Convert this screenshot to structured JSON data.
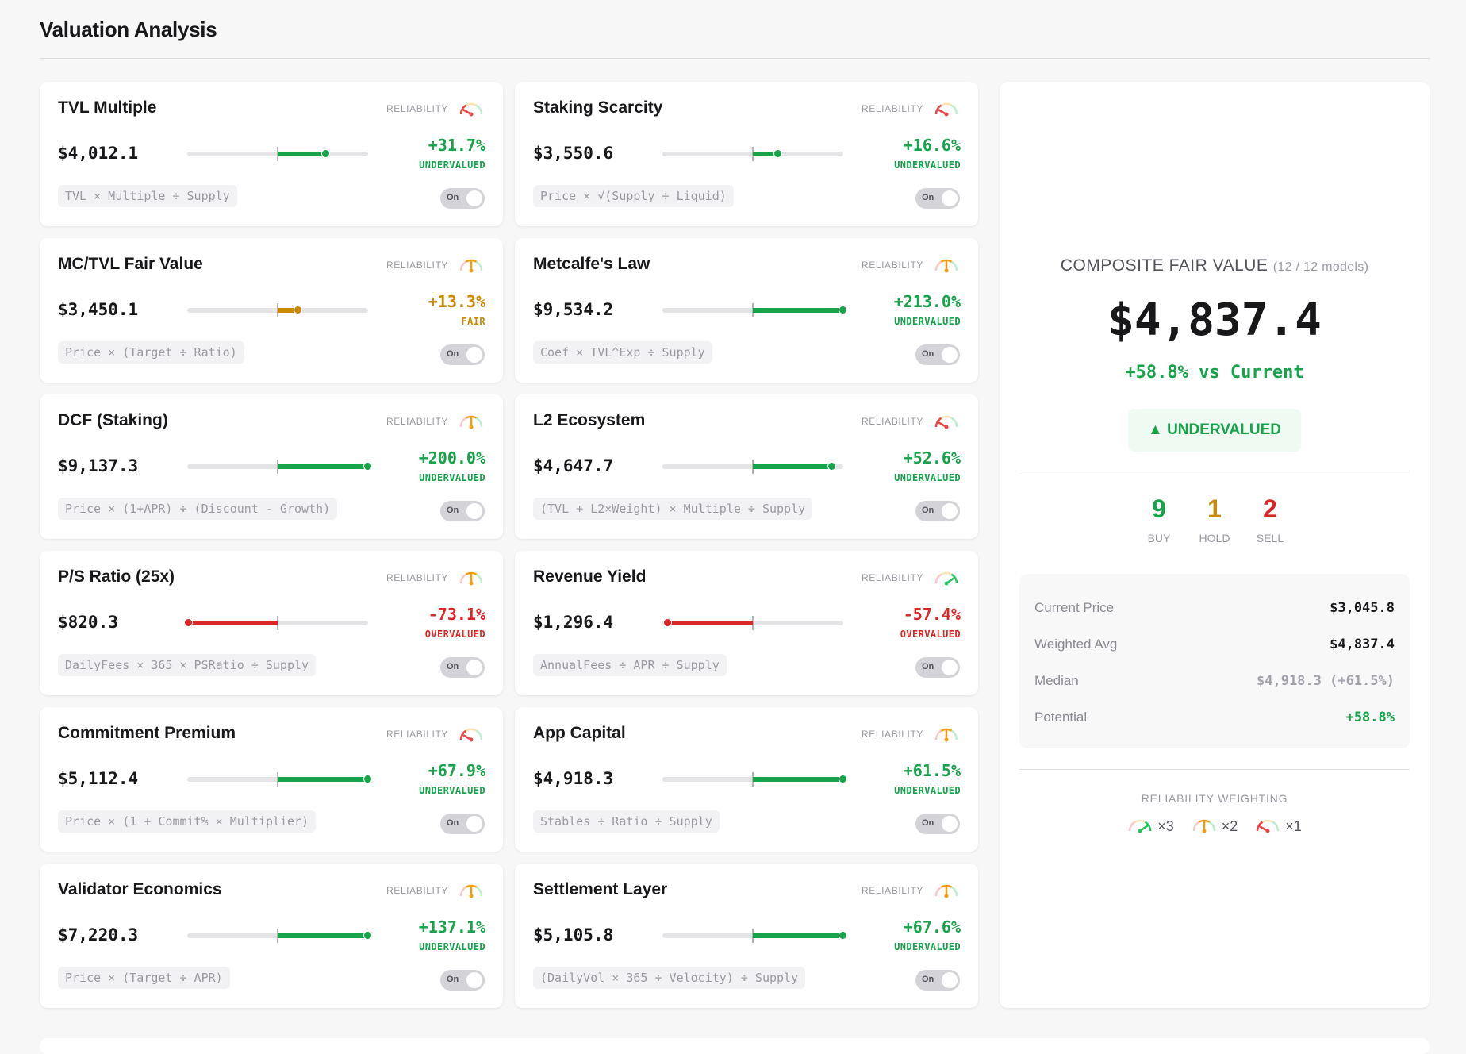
{
  "page": {
    "title": "Valuation Analysis"
  },
  "labels": {
    "reliability": "RELIABILITY",
    "toggle_on": "On"
  },
  "colors": {
    "green": "#16a34a",
    "amber": "#ca8a04",
    "red": "#dc2626",
    "gauge_high": "#22c55e",
    "gauge_mid": "#f59e0b",
    "gauge_low": "#ef4444"
  },
  "slider_range_pct": 60,
  "models": [
    {
      "name": "TVL Multiple",
      "value": "$4,012.1",
      "pct": 31.7,
      "pct_label": "+31.7%",
      "verdict": "UNDERVALUED",
      "formula": "TVL × Multiple ÷ Supply",
      "reliability": "low",
      "enabled": true
    },
    {
      "name": "Staking Scarcity",
      "value": "$3,550.6",
      "pct": 16.6,
      "pct_label": "+16.6%",
      "verdict": "UNDERVALUED",
      "formula": "Price × √(Supply ÷ Liquid)",
      "reliability": "low",
      "enabled": true
    },
    {
      "name": "MC/TVL Fair Value",
      "value": "$3,450.1",
      "pct": 13.3,
      "pct_label": "+13.3%",
      "verdict": "FAIR",
      "formula": "Price × (Target ÷ Ratio)",
      "reliability": "mid",
      "enabled": true
    },
    {
      "name": "Metcalfe's Law",
      "value": "$9,534.2",
      "pct": 213.0,
      "pct_label": "+213.0%",
      "verdict": "UNDERVALUED",
      "formula": "Coef × TVL^Exp ÷ Supply",
      "reliability": "mid",
      "enabled": true
    },
    {
      "name": "DCF (Staking)",
      "value": "$9,137.3",
      "pct": 200.0,
      "pct_label": "+200.0%",
      "verdict": "UNDERVALUED",
      "formula": "Price × (1+APR) ÷ (Discount - Growth)",
      "reliability": "mid",
      "enabled": true
    },
    {
      "name": "L2 Ecosystem",
      "value": "$4,647.7",
      "pct": 52.6,
      "pct_label": "+52.6%",
      "verdict": "UNDERVALUED",
      "formula": "(TVL + L2×Weight) × Multiple ÷ Supply",
      "reliability": "low",
      "enabled": true
    },
    {
      "name": "P/S Ratio (25x)",
      "value": "$820.3",
      "pct": -73.1,
      "pct_label": "-73.1%",
      "verdict": "OVERVALUED",
      "formula": "DailyFees × 365 × PSRatio ÷ Supply",
      "reliability": "mid",
      "enabled": true
    },
    {
      "name": "Revenue Yield",
      "value": "$1,296.4",
      "pct": -57.4,
      "pct_label": "-57.4%",
      "verdict": "OVERVALUED",
      "formula": "AnnualFees ÷ APR ÷ Supply",
      "reliability": "high",
      "enabled": true
    },
    {
      "name": "Commitment Premium",
      "value": "$5,112.4",
      "pct": 67.9,
      "pct_label": "+67.9%",
      "verdict": "UNDERVALUED",
      "formula": "Price × (1 + Commit% × Multiplier)",
      "reliability": "low",
      "enabled": true
    },
    {
      "name": "App Capital",
      "value": "$4,918.3",
      "pct": 61.5,
      "pct_label": "+61.5%",
      "verdict": "UNDERVALUED",
      "formula": "Stables ÷ Ratio ÷ Supply",
      "reliability": "mid",
      "enabled": true
    },
    {
      "name": "Validator Economics",
      "value": "$7,220.3",
      "pct": 137.1,
      "pct_label": "+137.1%",
      "verdict": "UNDERVALUED",
      "formula": "Price × (Target ÷ APR)",
      "reliability": "mid",
      "enabled": true
    },
    {
      "name": "Settlement Layer",
      "value": "$5,105.8",
      "pct": 67.6,
      "pct_label": "+67.6%",
      "verdict": "UNDERVALUED",
      "formula": "(DailyVol × 365 ÷ Velocity) ÷ Supply",
      "reliability": "mid",
      "enabled": true
    }
  ],
  "composite": {
    "title": "COMPOSITE FAIR VALUE",
    "models_count": "(12 / 12 models)",
    "value": "$4,837.4",
    "vs_current": "+58.8% vs Current",
    "badge": "UNDERVALUED",
    "counts": [
      {
        "n": "9",
        "label": "BUY",
        "color": "#16a34a"
      },
      {
        "n": "1",
        "label": "HOLD",
        "color": "#ca8a04"
      },
      {
        "n": "2",
        "label": "SELL",
        "color": "#dc2626"
      }
    ],
    "stats": [
      {
        "label": "Current Price",
        "value": "$3,045.8",
        "color": "#18181b"
      },
      {
        "label": "Weighted Avg",
        "value": "$4,837.4",
        "color": "#18181b"
      },
      {
        "label": "Median",
        "value": "$4,918.3 (+61.5%)",
        "color": "#a1a1aa"
      },
      {
        "label": "Potential",
        "value": "+58.8%",
        "color": "#16a34a"
      }
    ],
    "weighting_title": "RELIABILITY WEIGHTING",
    "weighting": [
      {
        "level": "high",
        "mult": "×3"
      },
      {
        "level": "mid",
        "mult": "×2"
      },
      {
        "level": "low",
        "mult": "×1"
      }
    ]
  }
}
